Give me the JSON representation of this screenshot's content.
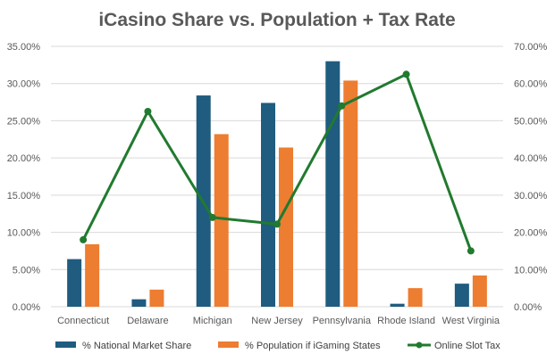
{
  "chart_data": {
    "type": "bar",
    "title": "iCasino Share vs. Population + Tax Rate",
    "categories": [
      "Connecticut",
      "Delaware",
      "Michigan",
      "New Jersey",
      "Pennsylvania",
      "Rhode Island",
      "West Virginia"
    ],
    "series": [
      {
        "name": "% National Market Share",
        "type": "bar",
        "axis": "left",
        "color": "#1f5c7f",
        "values": [
          6.4,
          1.0,
          28.4,
          27.4,
          33.0,
          0.4,
          3.1
        ]
      },
      {
        "name": "% Population if iGaming States",
        "type": "bar",
        "axis": "left",
        "color": "#ed7d31",
        "values": [
          8.4,
          2.3,
          23.2,
          21.4,
          30.4,
          2.5,
          4.2
        ]
      },
      {
        "name": "Online Slot Tax",
        "type": "line",
        "axis": "right",
        "color": "#217a2f",
        "values": [
          18.0,
          52.5,
          24.0,
          22.2,
          54.0,
          62.5,
          15.0
        ]
      }
    ],
    "ylim_left": [
      0,
      35
    ],
    "ylim_right": [
      0,
      70
    ],
    "left_ticks": [
      "0.00%",
      "5.00%",
      "10.00%",
      "15.00%",
      "20.00%",
      "25.00%",
      "30.00%",
      "35.00%"
    ],
    "right_ticks": [
      "0.00%",
      "10.00%",
      "20.00%",
      "30.00%",
      "40.00%",
      "50.00%",
      "60.00%",
      "70.00%"
    ],
    "grid": true,
    "legend_position": "bottom"
  }
}
